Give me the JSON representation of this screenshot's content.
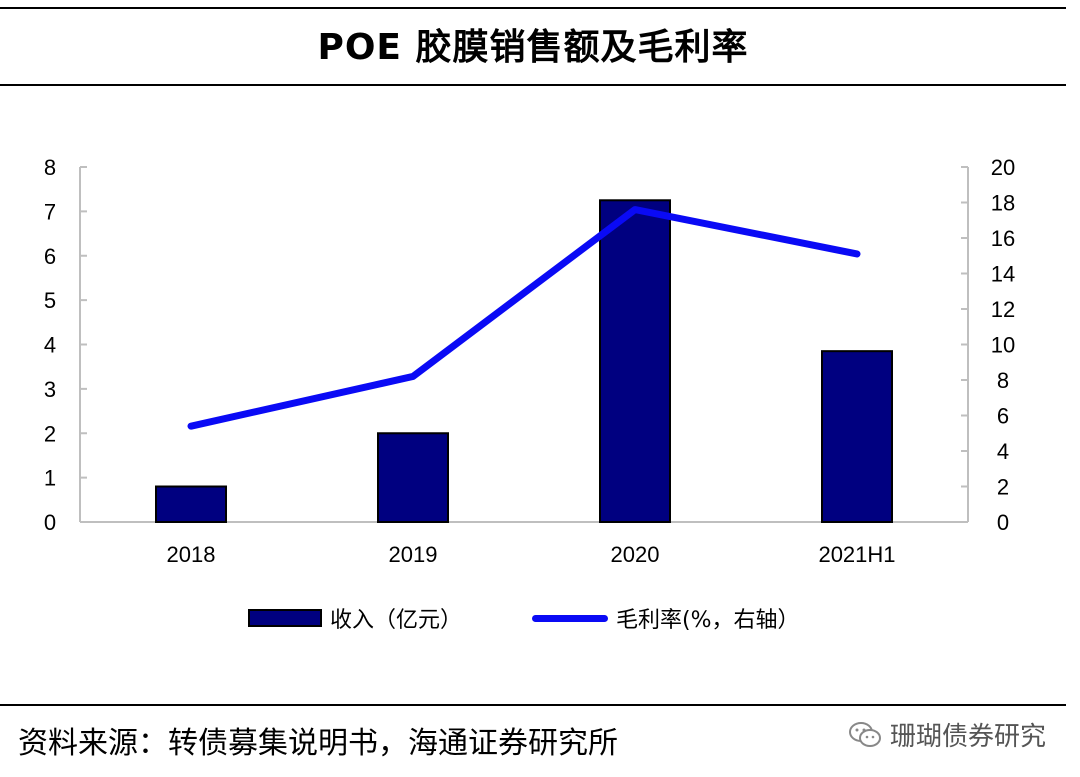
{
  "title": "POE 胶膜销售额及毛利率",
  "source": "资料来源：转债募集说明书，海通证券研究所",
  "watermark": "珊瑚债券研究",
  "chart_data": {
    "type": "bar",
    "categories": [
      "2018",
      "2019",
      "2020",
      "2021H1"
    ],
    "series": [
      {
        "name": "收入（亿元）",
        "type": "bar",
        "axis": "left",
        "values": [
          0.8,
          2.0,
          7.25,
          3.85
        ]
      },
      {
        "name": "毛利率(%，右轴）",
        "type": "line",
        "axis": "right",
        "values": [
          5.4,
          8.2,
          17.6,
          15.1
        ]
      }
    ],
    "yleft_ticks": [
      "0",
      "1",
      "2",
      "3",
      "4",
      "5",
      "6",
      "7",
      "8"
    ],
    "yright_ticks": [
      "0",
      "2",
      "4",
      "6",
      "8",
      "10",
      "12",
      "14",
      "16",
      "18",
      "20"
    ],
    "yleft_lim": [
      0,
      8
    ],
    "yright_lim": [
      0,
      20
    ],
    "colors": {
      "bar": "#000080",
      "line": "#0a0af5",
      "axis": "#bfbfbf"
    },
    "grid": false,
    "legend": "bottom"
  }
}
